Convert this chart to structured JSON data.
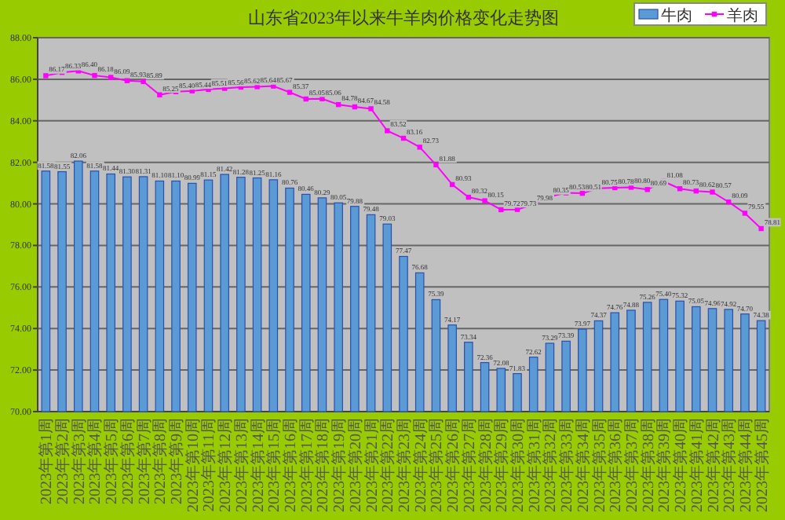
{
  "chart_data": {
    "type": "bar",
    "title": "山东省2023年以来牛羊肉价格变化走势图",
    "categories": [
      "2023年第1周",
      "2023年第2周",
      "2023年第3周",
      "2023年第4周",
      "2023年第5周",
      "2023年第6周",
      "2023年第7周",
      "2023年第8周",
      "2023年第9周",
      "2023年第10周",
      "2023年第11周",
      "2023年第12周",
      "2023年第13周",
      "2023年第14周",
      "2023年第15周",
      "2023年第16周",
      "2023年第17周",
      "2023年第18周",
      "2023年第19周",
      "2023年第20周",
      "2023年第21周",
      "2023年第22周",
      "2023年第23周",
      "2023年第24周",
      "2023年第25周",
      "2023年第26周",
      "2023年第27周",
      "2023年第28周",
      "2023年第29周",
      "2023年第30周",
      "2023年第31周",
      "2023年第32周",
      "2023年第33周",
      "2023年第34周",
      "2023年第35周",
      "2023年第36周",
      "2023年第37周",
      "2023年第38周",
      "2023年第39周",
      "2023年第40周",
      "2023年第41周",
      "2023年第42周",
      "2023年第43周",
      "2023年第44周",
      "2023年第45周"
    ],
    "series": [
      {
        "name": "牛肉",
        "color": "#5b9bd5",
        "values": [
          81.58,
          81.55,
          82.06,
          81.58,
          81.44,
          81.3,
          81.31,
          81.1,
          81.1,
          80.99,
          81.15,
          81.42,
          81.28,
          81.25,
          81.16,
          80.76,
          80.46,
          80.29,
          80.05,
          79.88,
          79.48,
          79.03,
          77.47,
          76.68,
          75.39,
          74.17,
          73.34,
          72.36,
          72.08,
          71.83,
          72.62,
          73.29,
          73.39,
          73.97,
          74.37,
          74.76,
          74.88,
          75.26,
          75.4,
          75.32,
          75.05,
          74.96,
          74.92,
          74.7,
          74.38
        ],
        "value_labels": [
          "81.58",
          "81.55",
          "82.06",
          "81.58",
          "81.44",
          "81.30",
          "81.31",
          "81.10",
          "81.10",
          "80.99",
          "81.15",
          "81.42",
          "81.28",
          "81.25",
          "81.16",
          "80.76",
          "80.46",
          "80.29",
          "80.05",
          "79.88",
          "79.48",
          "79.03",
          "77.47",
          "76.68",
          "75.39",
          "74.17",
          "73.34",
          "72.36",
          "72.08",
          "71.83",
          "72.62",
          "73.29",
          "73.39",
          "73.97",
          "74.37",
          "74.76",
          "74.88",
          "75.26",
          "75.40",
          "75.32",
          "75.05",
          "74.96",
          "74.92",
          "74.70",
          "74.38"
        ]
      },
      {
        "name": "羊肉",
        "type": "line",
        "color": "#ff00ff",
        "marker": "square",
        "values": [
          86.17,
          86.33,
          86.4,
          86.18,
          86.09,
          85.93,
          85.89,
          85.25,
          85.4,
          85.44,
          85.51,
          85.56,
          85.62,
          85.64,
          85.67,
          85.37,
          85.05,
          85.06,
          84.78,
          84.67,
          84.58,
          83.52,
          83.16,
          82.73,
          81.88,
          80.93,
          80.32,
          80.15,
          79.72,
          79.73,
          79.98,
          80.35,
          80.53,
          80.51,
          80.75,
          80.78,
          80.8,
          80.69,
          81.08,
          80.73,
          80.62,
          80.57,
          80.09,
          79.55,
          78.81
        ],
        "value_labels": [
          "86.17",
          "86.33",
          "86.40",
          "86.18",
          "86.09",
          "85.93",
          "85.89",
          "85.25",
          "85.40",
          "85.44",
          "85.51",
          "85.56",
          "85.62",
          "85.64",
          "85.67",
          "85.37",
          "85.05",
          "85.06",
          "84.78",
          "84.67",
          "84.58",
          "83.52",
          "83.16",
          "82.73",
          "81.88",
          "80.93",
          "80.32",
          "80.15",
          "79.72",
          "79.73",
          "79.98",
          "80.35",
          "80.53",
          "80.51",
          "80.75",
          "80.78",
          "80.80",
          "80.69",
          "81.08",
          "80.73",
          "80.62",
          "80.57",
          "80.09",
          "79.55",
          "78.81"
        ]
      }
    ],
    "ylim": [
      70,
      88
    ],
    "yticks": [
      {
        "value": 70,
        "label": "70.00"
      },
      {
        "value": 72,
        "label": "72.00"
      },
      {
        "value": 74,
        "label": "74.00"
      },
      {
        "value": 76,
        "label": "76.00"
      },
      {
        "value": 78,
        "label": "78.00"
      },
      {
        "value": 80,
        "label": "80.00"
      },
      {
        "value": 82,
        "label": "82.00"
      },
      {
        "value": 84,
        "label": "84.00"
      },
      {
        "value": 86,
        "label": "86.00"
      },
      {
        "value": 88,
        "label": "88.00"
      }
    ],
    "grid": "y",
    "legend": "top right"
  }
}
